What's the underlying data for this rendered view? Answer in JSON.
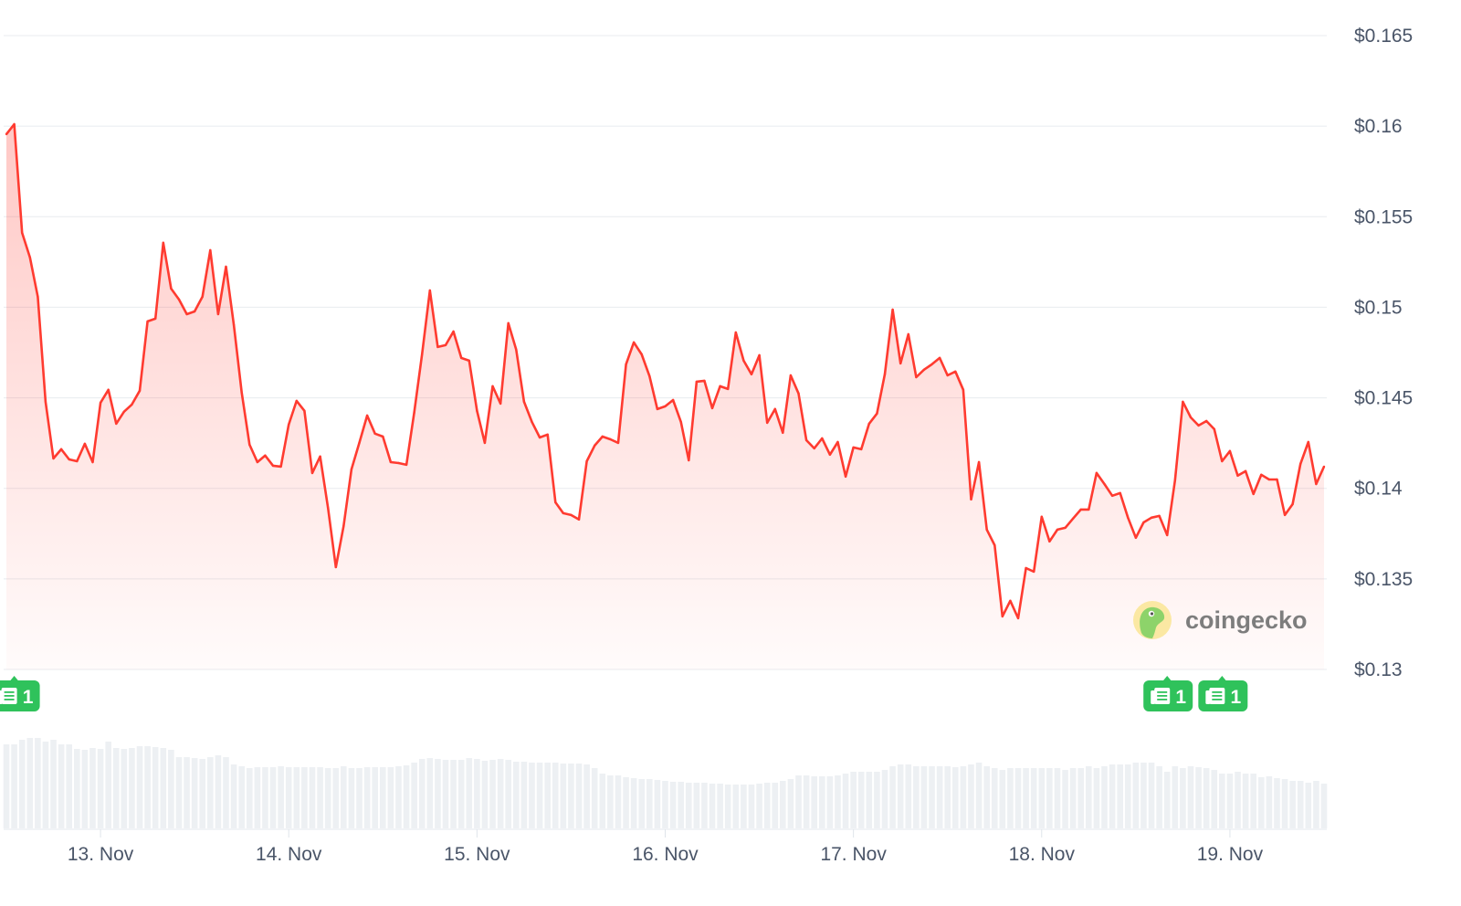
{
  "chart_data": {
    "type": "line",
    "title": "",
    "xlabel": "",
    "ylabel": "",
    "ylim": [
      0.13,
      0.165
    ],
    "y_ticks": [
      "$0.165",
      "$0.16",
      "$0.155",
      "$0.15",
      "$0.145",
      "$0.14",
      "$0.135",
      "$0.13"
    ],
    "y_tick_values": [
      0.165,
      0.16,
      0.155,
      0.15,
      0.145,
      0.14,
      0.135,
      0.13
    ],
    "x_ticks": [
      "13. Nov",
      "14. Nov",
      "15. Nov",
      "16. Nov",
      "17. Nov",
      "18. Nov",
      "19. Nov"
    ],
    "grid": true,
    "line_color": "#ff3b30",
    "fill_color": "#ff3b30",
    "volume_color": "#edf0f3",
    "series": [
      {
        "x": [
          "12 Nov 12:00",
          "12 Nov 13:00",
          "12 Nov 14:00",
          "12 Nov 15:00",
          "12 Nov 16:00",
          "12 Nov 17:00",
          "12 Nov 18:00",
          "12 Nov 19:00",
          "12 Nov 20:00",
          "12 Nov 21:00",
          "12 Nov 22:00",
          "12 Nov 23:00",
          "13 Nov 00:00",
          "13 Nov 01:00",
          "13 Nov 02:00",
          "13 Nov 03:00",
          "13 Nov 04:00",
          "13 Nov 05:00",
          "13 Nov 06:00",
          "13 Nov 07:00",
          "13 Nov 08:00",
          "13 Nov 09:00",
          "13 Nov 10:00",
          "13 Nov 11:00",
          "13 Nov 12:00",
          "13 Nov 13:00",
          "13 Nov 14:00",
          "13 Nov 15:00",
          "13 Nov 16:00",
          "13 Nov 17:00",
          "13 Nov 18:00",
          "13 Nov 19:00",
          "13 Nov 20:00",
          "13 Nov 21:00",
          "13 Nov 22:00",
          "13 Nov 23:00",
          "14 Nov 00:00",
          "14 Nov 01:00",
          "14 Nov 02:00",
          "14 Nov 03:00",
          "14 Nov 04:00",
          "14 Nov 05:00",
          "14 Nov 06:00",
          "14 Nov 07:00",
          "14 Nov 08:00",
          "14 Nov 09:00",
          "14 Nov 10:00",
          "14 Nov 11:00",
          "14 Nov 12:00",
          "14 Nov 13:00",
          "14 Nov 14:00",
          "14 Nov 15:00",
          "14 Nov 16:00",
          "14 Nov 17:00",
          "14 Nov 18:00",
          "14 Nov 19:00",
          "14 Nov 20:00",
          "14 Nov 21:00",
          "14 Nov 22:00",
          "14 Nov 23:00",
          "15 Nov 00:00",
          "15 Nov 01:00",
          "15 Nov 02:00",
          "15 Nov 03:00",
          "15 Nov 04:00",
          "15 Nov 05:00",
          "15 Nov 06:00",
          "15 Nov 07:00",
          "15 Nov 08:00",
          "15 Nov 09:00",
          "15 Nov 10:00",
          "15 Nov 11:00",
          "15 Nov 12:00",
          "15 Nov 13:00",
          "15 Nov 14:00",
          "15 Nov 15:00",
          "15 Nov 16:00",
          "15 Nov 17:00",
          "15 Nov 18:00",
          "15 Nov 19:00",
          "15 Nov 20:00",
          "15 Nov 21:00",
          "15 Nov 22:00",
          "15 Nov 23:00",
          "16 Nov 00:00",
          "16 Nov 01:00",
          "16 Nov 02:00",
          "16 Nov 03:00",
          "16 Nov 04:00",
          "16 Nov 05:00",
          "16 Nov 06:00",
          "16 Nov 07:00",
          "16 Nov 08:00",
          "16 Nov 09:00",
          "16 Nov 10:00",
          "16 Nov 11:00",
          "16 Nov 12:00",
          "16 Nov 13:00",
          "16 Nov 14:00",
          "16 Nov 15:00",
          "16 Nov 16:00",
          "16 Nov 17:00",
          "16 Nov 18:00",
          "16 Nov 19:00",
          "16 Nov 20:00",
          "16 Nov 21:00",
          "16 Nov 22:00",
          "16 Nov 23:00",
          "17 Nov 00:00",
          "17 Nov 01:00",
          "17 Nov 02:00",
          "17 Nov 03:00",
          "17 Nov 04:00",
          "17 Nov 05:00",
          "17 Nov 06:00",
          "17 Nov 07:00",
          "17 Nov 08:00",
          "17 Nov 09:00",
          "17 Nov 10:00",
          "17 Nov 11:00",
          "17 Nov 12:00",
          "17 Nov 13:00",
          "17 Nov 14:00",
          "17 Nov 15:00",
          "17 Nov 16:00",
          "17 Nov 17:00",
          "17 Nov 18:00",
          "17 Nov 19:00",
          "17 Nov 20:00",
          "17 Nov 21:00",
          "17 Nov 22:00",
          "17 Nov 23:00",
          "18 Nov 00:00",
          "18 Nov 01:00",
          "18 Nov 02:00",
          "18 Nov 03:00",
          "18 Nov 04:00",
          "18 Nov 05:00",
          "18 Nov 06:00",
          "18 Nov 07:00",
          "18 Nov 08:00",
          "18 Nov 09:00",
          "18 Nov 10:00",
          "18 Nov 11:00",
          "18 Nov 12:00",
          "18 Nov 13:00",
          "18 Nov 14:00",
          "18 Nov 15:00",
          "18 Nov 16:00",
          "18 Nov 17:00",
          "18 Nov 18:00",
          "18 Nov 19:00",
          "18 Nov 20:00",
          "18 Nov 21:00",
          "18 Nov 22:00",
          "18 Nov 23:00",
          "19 Nov 00:00",
          "19 Nov 01:00",
          "19 Nov 02:00",
          "19 Nov 03:00",
          "19 Nov 04:00",
          "19 Nov 05:00",
          "19 Nov 06:00",
          "19 Nov 07:00",
          "19 Nov 08:00",
          "19 Nov 09:00",
          "19 Nov 10:00",
          "19 Nov 11:00",
          "19 Nov 12:00"
        ],
        "price": [
          0.15956,
          0.16011,
          0.15411,
          0.15275,
          0.15058,
          0.14478,
          0.14165,
          0.14216,
          0.1416,
          0.1415,
          0.14246,
          0.14145,
          0.14473,
          0.14544,
          0.14357,
          0.14423,
          0.14463,
          0.14539,
          0.14922,
          0.14937,
          0.15356,
          0.15103,
          0.15043,
          0.14962,
          0.14977,
          0.15058,
          0.15315,
          0.14962,
          0.15224,
          0.14902,
          0.14529,
          0.14241,
          0.14145,
          0.14181,
          0.14125,
          0.1412,
          0.14352,
          0.14483,
          0.14428,
          0.14085,
          0.14176,
          0.13893,
          0.13565,
          0.13792,
          0.14105,
          0.14251,
          0.14402,
          0.14302,
          0.14286,
          0.14145,
          0.1414,
          0.1413,
          0.14418,
          0.1474,
          0.15093,
          0.14781,
          0.14791,
          0.14866,
          0.1472,
          0.14705,
          0.14428,
          0.14251,
          0.14564,
          0.14468,
          0.14912,
          0.14766,
          0.14478,
          0.14367,
          0.14281,
          0.14297,
          0.13923,
          0.13863,
          0.13853,
          0.13828,
          0.1415,
          0.14236,
          0.14286,
          0.14271,
          0.14251,
          0.14685,
          0.14806,
          0.1474,
          0.1462,
          0.14438,
          0.14453,
          0.14488,
          0.14367,
          0.14155,
          0.14589,
          0.14594,
          0.14443,
          0.14564,
          0.14549,
          0.14861,
          0.14705,
          0.1463,
          0.14735,
          0.14362,
          0.14438,
          0.14307,
          0.14624,
          0.14524,
          0.14266,
          0.14221,
          0.14276,
          0.14186,
          0.14256,
          0.14065,
          0.14226,
          0.14216,
          0.14357,
          0.14413,
          0.1463,
          0.14987,
          0.1469,
          0.14851,
          0.14614,
          0.14655,
          0.14685,
          0.1472,
          0.14624,
          0.14645,
          0.14544,
          0.13939,
          0.14145,
          0.13772,
          0.13686,
          0.13293,
          0.13379,
          0.13283,
          0.1356,
          0.1354,
          0.13843,
          0.13707,
          0.13772,
          0.13782,
          0.13833,
          0.13883,
          0.13883,
          0.14085,
          0.14024,
          0.13959,
          0.13974,
          0.13838,
          0.13727,
          0.13812,
          0.13838,
          0.13848,
          0.13742,
          0.14044,
          0.14478,
          0.14392,
          0.14347,
          0.14372,
          0.14327,
          0.1415,
          0.14206,
          0.1407,
          0.14095,
          0.13969,
          0.14075,
          0.14049,
          0.14049,
          0.13853,
          0.13913,
          0.14135,
          0.14256,
          0.14024,
          0.1412
        ],
        "volume_relative": [
          92,
          92,
          97,
          99,
          99,
          95,
          97,
          92,
          92,
          87,
          86,
          88,
          87,
          95,
          88,
          87,
          88,
          90,
          90,
          89,
          88,
          86,
          78,
          78,
          77,
          76,
          78,
          80,
          78,
          70,
          68,
          66,
          67,
          67,
          67,
          68,
          67,
          67,
          67,
          67,
          67,
          66,
          66,
          68,
          66,
          66,
          67,
          67,
          67,
          67,
          68,
          69,
          72,
          76,
          77,
          76,
          75,
          75,
          75,
          77,
          76,
          74,
          75,
          76,
          75,
          73,
          73,
          72,
          72,
          72,
          72,
          71,
          71,
          71,
          70,
          66,
          60,
          58,
          58,
          56,
          55,
          54,
          54,
          53,
          52,
          51,
          51,
          50,
          50,
          50,
          49,
          49,
          48,
          48,
          48,
          48,
          49,
          50,
          50,
          52,
          54,
          58,
          58,
          57,
          57,
          57,
          58,
          60,
          62,
          62,
          62,
          62,
          64,
          68,
          70,
          70,
          68,
          68,
          68,
          68,
          68,
          67,
          68,
          70,
          72,
          68,
          66,
          64,
          66,
          66,
          66,
          66,
          66,
          66,
          66,
          64,
          66,
          66,
          68,
          66,
          68,
          70,
          70,
          70,
          72,
          72,
          72,
          68,
          62,
          68,
          66,
          68,
          67,
          66,
          64,
          60,
          60,
          62,
          60,
          60,
          56,
          57,
          55,
          54,
          52,
          52,
          50,
          52,
          49
        ]
      }
    ],
    "news_markers": [
      {
        "at": "12 Nov 13:00",
        "count": "1",
        "icon": "newspaper-icon"
      },
      {
        "at": "18 Nov 16:00",
        "count": "1",
        "icon": "newspaper-icon"
      },
      {
        "at": "18 Nov 23:00",
        "count": "1",
        "icon": "newspaper-icon"
      }
    ],
    "news_color": "#2fc25b"
  },
  "watermark": {
    "text": "coingecko",
    "icon": "gecko-logo-icon"
  }
}
